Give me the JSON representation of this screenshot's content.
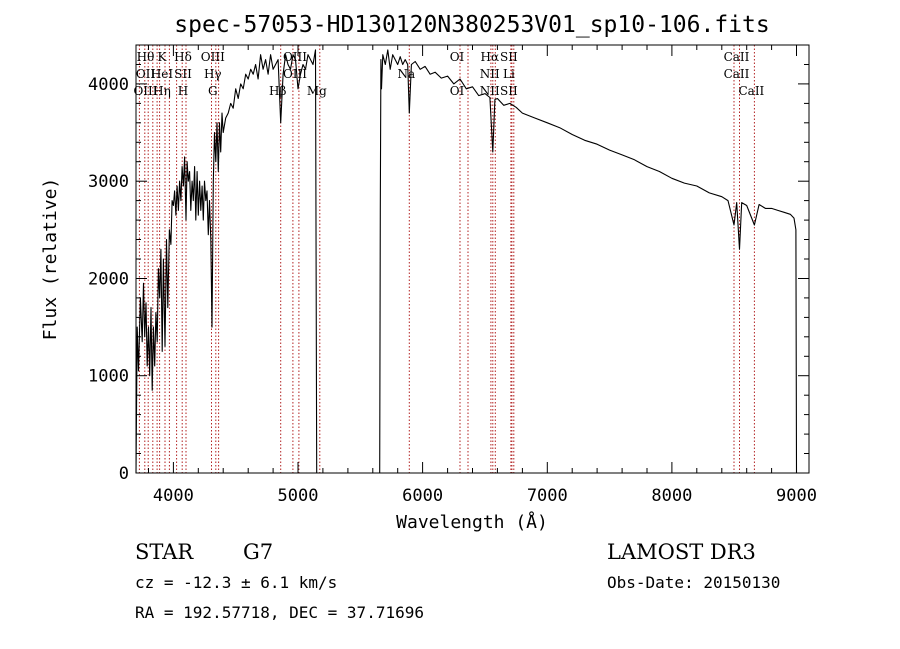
{
  "chart_data": {
    "type": "line",
    "title": "spec-57053-HD130120N380253V01_sp10-106.fits",
    "xlabel": "Wavelength (Å)",
    "ylabel": "Flux (relative)",
    "xlim": [
      3700,
      9100
    ],
    "ylim": [
      0,
      4400
    ],
    "xticks": [
      4000,
      5000,
      6000,
      7000,
      8000,
      9000
    ],
    "yticks": [
      0,
      1000,
      2000,
      3000,
      4000
    ],
    "xtick_labels": [
      "4000",
      "5000",
      "6000",
      "7000",
      "8000",
      "9000"
    ],
    "ytick_labels": [
      "0",
      "1000",
      "2000",
      "3000",
      "4000"
    ],
    "grid": false,
    "series": [
      {
        "x": [
          3700,
          3710,
          3720,
          3735,
          3750,
          3760,
          3770,
          3780,
          3790,
          3800,
          3810,
          3820,
          3830,
          3840,
          3850,
          3860,
          3870,
          3880,
          3890,
          3900,
          3910,
          3920,
          3933,
          3945,
          3955,
          3968,
          3980,
          3990,
          4000,
          4010,
          4020,
          4030,
          4040,
          4050,
          4060,
          4070,
          4080,
          4090,
          4101,
          4110,
          4120,
          4130,
          4140,
          4150,
          4160,
          4170,
          4180,
          4190,
          4200,
          4210,
          4220,
          4230,
          4240,
          4250,
          4260,
          4270,
          4280,
          4290,
          4300,
          4310,
          4320,
          4330,
          4340,
          4350,
          4360,
          4370,
          4380,
          4390,
          4400,
          4420,
          4440,
          4460,
          4480,
          4500,
          4520,
          4540,
          4560,
          4580,
          4600,
          4620,
          4640,
          4660,
          4680,
          4700,
          4720,
          4740,
          4760,
          4780,
          4800,
          4820,
          4840,
          4861,
          4880,
          4900,
          4920,
          4940,
          4960,
          4980,
          5000,
          5020,
          5040,
          5060,
          5080,
          5100,
          5120,
          5140,
          5150,
          5655,
          5660,
          5665,
          5670,
          5680,
          5700,
          5720,
          5740,
          5760,
          5780,
          5800,
          5820,
          5840,
          5860,
          5880,
          5893,
          5910,
          5940,
          5980,
          6020,
          6060,
          6100,
          6150,
          6200,
          6250,
          6300,
          6350,
          6400,
          6450,
          6500,
          6540,
          6563,
          6580,
          6600,
          6650,
          6700,
          6750,
          6800,
          6900,
          7000,
          7100,
          7200,
          7300,
          7400,
          7500,
          7600,
          7700,
          7800,
          7900,
          8000,
          8100,
          8200,
          8300,
          8400,
          8450,
          8498,
          8520,
          8542,
          8560,
          8600,
          8662,
          8700,
          8750,
          8800,
          8850,
          8900,
          8950,
          8980,
          8995,
          9000
        ],
        "y": [
          0,
          1500,
          1050,
          1800,
          1350,
          1950,
          1400,
          1750,
          1100,
          1500,
          1000,
          1700,
          850,
          1500,
          1100,
          1650,
          1350,
          2100,
          1800,
          2300,
          1250,
          2200,
          1300,
          2400,
          1700,
          2500,
          2350,
          2800,
          2750,
          2900,
          2650,
          2950,
          2700,
          3000,
          2800,
          3150,
          2950,
          3250,
          2600,
          3200,
          3000,
          3100,
          2700,
          3000,
          2800,
          3150,
          2600,
          3100,
          2650,
          3000,
          2700,
          2950,
          2600,
          3000,
          2800,
          2900,
          2450,
          2800,
          2400,
          1500,
          3000,
          3500,
          3200,
          3600,
          3100,
          3600,
          3300,
          3700,
          3500,
          3650,
          3700,
          3800,
          3750,
          3950,
          3850,
          4000,
          3950,
          4100,
          4050,
          4150,
          4100,
          4200,
          4050,
          4300,
          4150,
          4250,
          4100,
          4300,
          4150,
          4200,
          4250,
          3600,
          4100,
          4300,
          4200,
          4150,
          4300,
          4250,
          3950,
          4100,
          4200,
          4150,
          4300,
          4250,
          4200,
          4350,
          0,
          0,
          2700,
          4250,
          3950,
          4300,
          4200,
          4350,
          4150,
          4300,
          4250,
          4200,
          4280,
          4200,
          4250,
          4200,
          3700,
          4200,
          4230,
          4150,
          4180,
          4100,
          4120,
          4060,
          4080,
          4000,
          4050,
          3950,
          3970,
          3880,
          3900,
          3860,
          3300,
          3840,
          3850,
          3780,
          3800,
          3760,
          3700,
          3650,
          3600,
          3550,
          3480,
          3420,
          3380,
          3320,
          3270,
          3220,
          3150,
          3100,
          3030,
          2980,
          2950,
          2880,
          2840,
          2800,
          2550,
          2780,
          2300,
          2780,
          2750,
          2550,
          2760,
          2720,
          2720,
          2700,
          2680,
          2660,
          2620,
          2500,
          0
        ]
      }
    ],
    "annotations": [
      {
        "lines": [
          "Hθ",
          "OII",
          "OIII"
        ],
        "x": 3800
      },
      {
        "lines": [
          "K",
          "HeI",
          "Hη"
        ],
        "x": 3933
      },
      {
        "lines": [
          "Hδ",
          "SII",
          "H"
        ],
        "x": 4101
      },
      {
        "lines": [
          "OIII",
          "Hγ",
          "G"
        ],
        "x": 4340
      },
      {
        "lines": [
          "",
          "",
          "Hβ"
        ],
        "x": 4861
      },
      {
        "lines": [
          "OIII",
          "OIII",
          ""
        ],
        "x": 5000
      },
      {
        "lines": [
          "",
          "",
          "Mg"
        ],
        "x": 5175
      },
      {
        "lines": [
          "",
          "Na",
          ""
        ],
        "x": 5893
      },
      {
        "lines": [
          "OI",
          "",
          "OI"
        ],
        "x": 6300
      },
      {
        "lines": [
          "Hα",
          "NII",
          "NII"
        ],
        "x": 6563
      },
      {
        "lines": [
          "SII",
          "Li",
          "SII"
        ],
        "x": 6716
      },
      {
        "lines": [
          "CaII",
          "CaII",
          ""
        ],
        "x": 8542
      },
      {
        "lines": [
          "",
          "",
          "CaII"
        ],
        "x": 8662
      }
    ],
    "marker_lines": [
      3727,
      3771,
      3798,
      3835,
      3869,
      3889,
      3933,
      3968,
      4026,
      4071,
      4101,
      4306,
      4340,
      4363,
      4861,
      4959,
      5007,
      5175,
      5893,
      6300,
      6364,
      6548,
      6563,
      6583,
      6708,
      6716,
      6731,
      8498,
      8542,
      8662
    ]
  },
  "info": {
    "object_type": "STAR",
    "subclass": "G7",
    "redshift": "cz = -12.3 ± 6.1 km/s",
    "coords": "RA = 192.57718, DEC =  37.71696",
    "survey": "LAMOST DR3",
    "obs_date": "Obs-Date: 20150130"
  }
}
